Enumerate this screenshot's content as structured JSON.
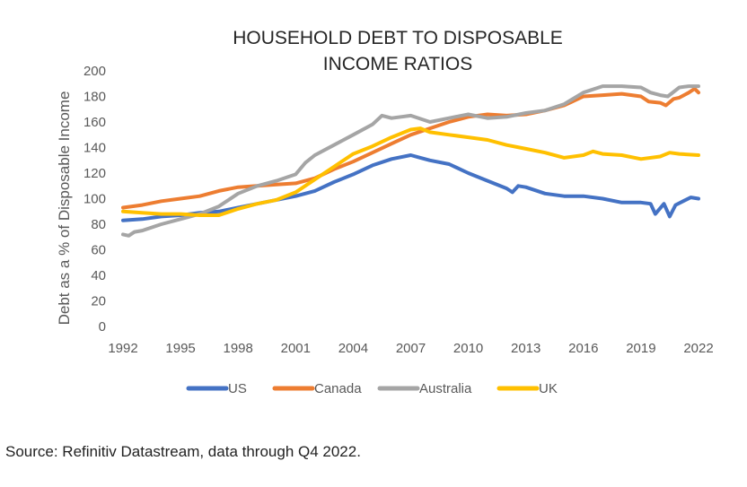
{
  "chart_data": {
    "type": "line",
    "title_lines": [
      "HOUSEHOLD DEBT TO DISPOSABLE",
      "INCOME RATIOS"
    ],
    "ylabel": "Debt as a % of Disposable Income",
    "xlabel": "",
    "ylim": [
      0,
      200
    ],
    "yticks": [
      0,
      20,
      40,
      60,
      80,
      100,
      120,
      140,
      160,
      180,
      200
    ],
    "xlim": [
      1992,
      2022
    ],
    "xticks": [
      1992,
      1995,
      1998,
      2001,
      2004,
      2007,
      2010,
      2013,
      2016,
      2019,
      2022
    ],
    "grid": false,
    "legend": "bottom",
    "series": [
      {
        "name": "US",
        "color": "#4472C4",
        "points": [
          [
            1992,
            83
          ],
          [
            1993,
            84
          ],
          [
            1994,
            86
          ],
          [
            1995,
            87
          ],
          [
            1996,
            89
          ],
          [
            1997,
            90
          ],
          [
            1998,
            93
          ],
          [
            1999,
            96
          ],
          [
            2000,
            99
          ],
          [
            2001,
            102
          ],
          [
            2002,
            106
          ],
          [
            2003,
            113
          ],
          [
            2004,
            119
          ],
          [
            2005,
            126
          ],
          [
            2006,
            131
          ],
          [
            2007,
            134
          ],
          [
            2007.5,
            132
          ],
          [
            2008,
            130
          ],
          [
            2009,
            127
          ],
          [
            2010,
            120
          ],
          [
            2011,
            114
          ],
          [
            2012,
            108
          ],
          [
            2012.3,
            105
          ],
          [
            2012.6,
            110
          ],
          [
            2013,
            109
          ],
          [
            2014,
            104
          ],
          [
            2015,
            102
          ],
          [
            2016,
            102
          ],
          [
            2017,
            100
          ],
          [
            2018,
            97
          ],
          [
            2019,
            97
          ],
          [
            2019.5,
            96
          ],
          [
            2019.75,
            88
          ],
          [
            2020.2,
            96
          ],
          [
            2020.5,
            86
          ],
          [
            2020.8,
            95
          ],
          [
            2021.2,
            98
          ],
          [
            2021.6,
            101
          ],
          [
            2022,
            100
          ]
        ]
      },
      {
        "name": "Canada",
        "color": "#ED7D31",
        "points": [
          [
            1992,
            93
          ],
          [
            1993,
            95
          ],
          [
            1994,
            98
          ],
          [
            1995,
            100
          ],
          [
            1996,
            102
          ],
          [
            1997,
            106
          ],
          [
            1998,
            109
          ],
          [
            1999,
            110
          ],
          [
            2000,
            111
          ],
          [
            2001,
            112
          ],
          [
            2002,
            116
          ],
          [
            2003,
            123
          ],
          [
            2004,
            129
          ],
          [
            2005,
            136
          ],
          [
            2006,
            143
          ],
          [
            2007,
            150
          ],
          [
            2008,
            155
          ],
          [
            2009,
            160
          ],
          [
            2010,
            164
          ],
          [
            2011,
            166
          ],
          [
            2012,
            165
          ],
          [
            2013,
            166
          ],
          [
            2014,
            169
          ],
          [
            2015,
            173
          ],
          [
            2016,
            180
          ],
          [
            2017,
            181
          ],
          [
            2018,
            182
          ],
          [
            2019,
            180
          ],
          [
            2019.4,
            176
          ],
          [
            2020,
            175
          ],
          [
            2020.3,
            173
          ],
          [
            2020.7,
            178
          ],
          [
            2021,
            179
          ],
          [
            2021.5,
            183
          ],
          [
            2021.8,
            186
          ],
          [
            2022,
            183
          ]
        ]
      },
      {
        "name": "Australia",
        "color": "#A5A5A5",
        "points": [
          [
            1992,
            72
          ],
          [
            1992.3,
            71
          ],
          [
            1992.6,
            74
          ],
          [
            1993,
            75
          ],
          [
            1994,
            80
          ],
          [
            1995,
            84
          ],
          [
            1996,
            88
          ],
          [
            1997,
            94
          ],
          [
            1998,
            104
          ],
          [
            1999,
            110
          ],
          [
            2000,
            114
          ],
          [
            2001,
            119
          ],
          [
            2001.5,
            128
          ],
          [
            2002,
            134
          ],
          [
            2003,
            142
          ],
          [
            2004,
            150
          ],
          [
            2005,
            158
          ],
          [
            2005.5,
            165
          ],
          [
            2006,
            163
          ],
          [
            2007,
            165
          ],
          [
            2008,
            160
          ],
          [
            2009,
            163
          ],
          [
            2010,
            166
          ],
          [
            2011,
            163
          ],
          [
            2012,
            164
          ],
          [
            2013,
            167
          ],
          [
            2014,
            169
          ],
          [
            2015,
            174
          ],
          [
            2016,
            183
          ],
          [
            2017,
            188
          ],
          [
            2018,
            188
          ],
          [
            2019,
            187
          ],
          [
            2019.5,
            183
          ],
          [
            2020,
            181
          ],
          [
            2020.4,
            180
          ],
          [
            2021,
            187
          ],
          [
            2021.5,
            188
          ],
          [
            2022,
            188
          ]
        ]
      },
      {
        "name": "UK",
        "color": "#FFC000",
        "points": [
          [
            1992,
            90
          ],
          [
            1993,
            89
          ],
          [
            1994,
            88
          ],
          [
            1995,
            88
          ],
          [
            1996,
            87
          ],
          [
            1997,
            87
          ],
          [
            1998,
            92
          ],
          [
            1999,
            96
          ],
          [
            2000,
            99
          ],
          [
            2001,
            105
          ],
          [
            2002,
            115
          ],
          [
            2003,
            125
          ],
          [
            2004,
            135
          ],
          [
            2005,
            141
          ],
          [
            2006,
            148
          ],
          [
            2007,
            154
          ],
          [
            2007.5,
            155
          ],
          [
            2008,
            152
          ],
          [
            2009,
            150
          ],
          [
            2010,
            148
          ],
          [
            2011,
            146
          ],
          [
            2012,
            142
          ],
          [
            2013,
            139
          ],
          [
            2014,
            136
          ],
          [
            2015,
            132
          ],
          [
            2016,
            134
          ],
          [
            2016.5,
            137
          ],
          [
            2017,
            135
          ],
          [
            2018,
            134
          ],
          [
            2019,
            131
          ],
          [
            2020,
            133
          ],
          [
            2020.5,
            136
          ],
          [
            2021,
            135
          ],
          [
            2022,
            134
          ]
        ]
      }
    ]
  },
  "source": "Source: Refinitiv Datastream, data through Q4 2022."
}
